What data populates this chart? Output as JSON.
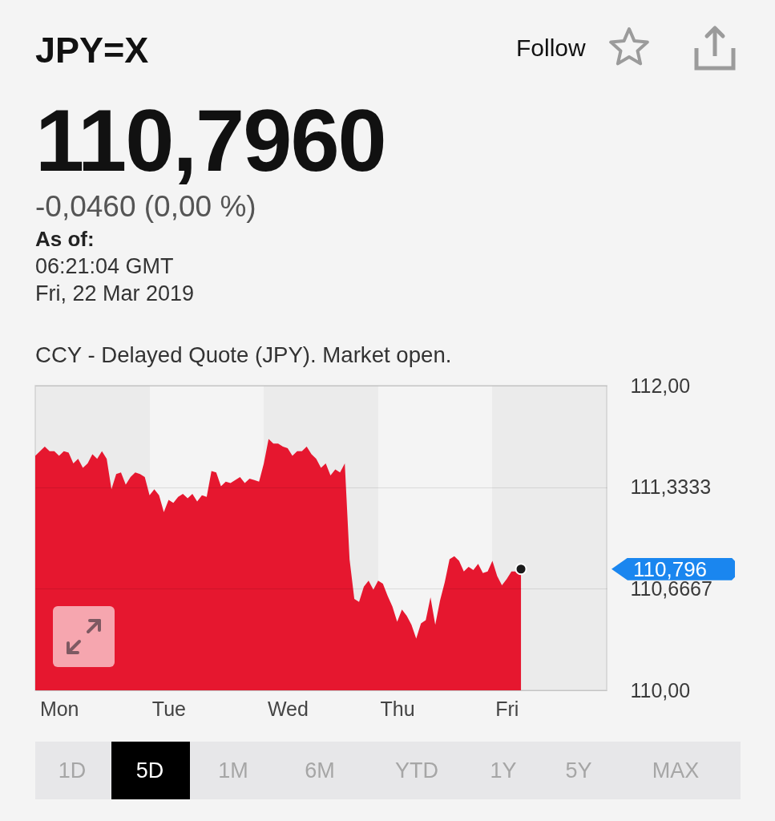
{
  "chart_data": {
    "type": "area",
    "title": "JPY=X",
    "subtitle": "110,7960",
    "annotations": [
      "-0,0460 (0,00 %)",
      "As of:",
      "06:21:04 GMT",
      "Fri, 22 Mar 2019",
      "CCY - Delayed Quote (JPY). Market open.",
      "Follow",
      "1D",
      "5D",
      "1M",
      "6M",
      "YTD",
      "1Y",
      "5Y",
      "MAX",
      "110,796"
    ],
    "categories": [
      null,
      null,
      null,
      null,
      null,
      "Mon",
      null,
      null,
      null,
      null,
      null,
      null,
      null,
      null,
      null,
      null,
      null,
      null,
      null,
      null,
      null,
      null,
      null,
      null,
      null,
      null,
      null,
      null,
      "Tue",
      null,
      null,
      null,
      null,
      null,
      null,
      null,
      null,
      null,
      null,
      null,
      null,
      null,
      null,
      null,
      null,
      null,
      null,
      null,
      null,
      null,
      null,
      null,
      null,
      "Wed",
      null,
      null,
      null,
      null,
      null,
      null,
      null,
      null,
      null,
      null,
      null,
      null,
      null,
      null,
      null,
      null,
      null,
      null,
      null,
      null,
      null,
      null,
      "Thu",
      null,
      null,
      null,
      null,
      null,
      null,
      null,
      null,
      null,
      null,
      null,
      null,
      null,
      null,
      null,
      null,
      null,
      null,
      null,
      null,
      null,
      null,
      "Fri",
      null,
      null,
      null,
      null,
      null,
      null,
      null,
      null,
      null,
      null,
      null,
      null,
      null,
      null,
      null,
      null,
      null,
      null,
      null,
      null,
      null
    ],
    "values": [
      111.54,
      111.57,
      111.6,
      111.57,
      111.57,
      111.54,
      111.57,
      111.56,
      111.49,
      111.52,
      111.46,
      111.49,
      111.55,
      111.52,
      111.57,
      111.52,
      111.32,
      111.42,
      111.43,
      111.35,
      111.4,
      111.43,
      111.42,
      111.4,
      111.28,
      111.32,
      111.28,
      111.17,
      111.25,
      111.23,
      111.27,
      111.29,
      111.26,
      111.29,
      111.24,
      111.28,
      111.27,
      111.44,
      111.43,
      111.34,
      111.37,
      111.36,
      111.38,
      111.4,
      111.36,
      111.39,
      111.38,
      111.37,
      111.49,
      111.65,
      111.62,
      111.62,
      111.6,
      111.59,
      111.54,
      111.57,
      111.57,
      111.6,
      111.55,
      111.52,
      111.46,
      111.49,
      111.41,
      111.45,
      111.43,
      111.49,
      110.86,
      110.6,
      110.58,
      110.68,
      110.72,
      110.66,
      110.72,
      110.7,
      110.62,
      110.55,
      110.45,
      110.53,
      110.49,
      110.43,
      110.34,
      110.44,
      110.46,
      110.61,
      110.43,
      110.59,
      110.71,
      110.86,
      110.88,
      110.85,
      110.78,
      110.81,
      110.79,
      110.83,
      110.77,
      110.78,
      110.85,
      110.75,
      110.69,
      110.73,
      110.78,
      110.78,
      110.796,
      null,
      null,
      null,
      null,
      null,
      null,
      null,
      null,
      null,
      null,
      null,
      null,
      null,
      null,
      null,
      null,
      null,
      null
    ],
    "color": "#e6172f",
    "ylim": [
      110,
      112
    ],
    "yticks": [
      {
        "value": 110,
        "label": "110,00"
      },
      {
        "value": 110.6667,
        "label": "110,6667"
      },
      {
        "value": 111.3333,
        "label": "111,3333"
      },
      {
        "value": 112,
        "label": "112,00"
      }
    ],
    "grid": "y"
  }
}
